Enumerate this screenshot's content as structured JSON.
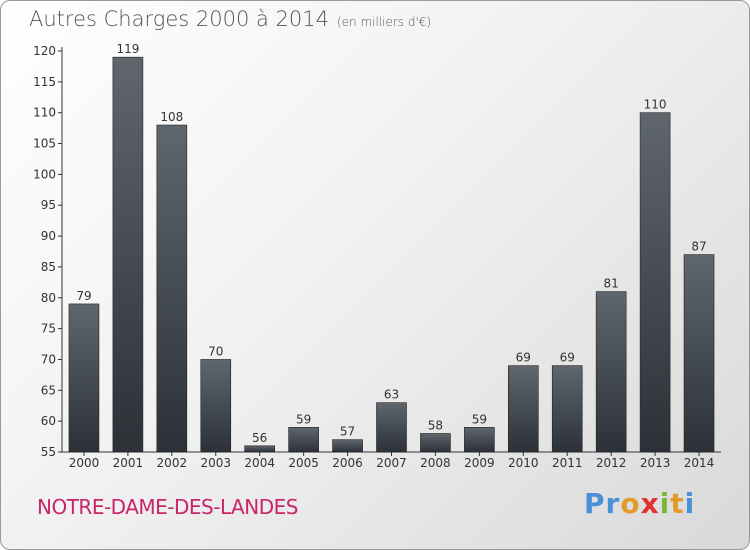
{
  "header": {
    "title": "Autres Charges 2000 à 2014",
    "subtitle": "(en milliers d'€)"
  },
  "footer": {
    "city": "NOTRE-DAME-DES-LANDES",
    "logo": [
      "P",
      "r",
      "o",
      "x",
      "i",
      "t",
      "i"
    ],
    "logo_colors": [
      "#4a90d9",
      "#4a90d9",
      "#e39a2b",
      "#e03030",
      "#7ab83a",
      "#e39a2b",
      "#4a90d9"
    ]
  },
  "chart_data": {
    "type": "bar",
    "categories": [
      "2000",
      "2001",
      "2002",
      "2003",
      "2004",
      "2005",
      "2006",
      "2007",
      "2008",
      "2009",
      "2010",
      "2011",
      "2012",
      "2013",
      "2014"
    ],
    "values": [
      79,
      119,
      108,
      70,
      56,
      59,
      57,
      63,
      58,
      59,
      69,
      69,
      81,
      110,
      87
    ],
    "ylim": [
      55,
      120
    ],
    "yticks": [
      55,
      60,
      65,
      70,
      75,
      80,
      85,
      90,
      95,
      100,
      105,
      110,
      115,
      120
    ],
    "grid": false,
    "bar_color_top": "#5f666e",
    "bar_color_bottom": "#2c3138"
  }
}
